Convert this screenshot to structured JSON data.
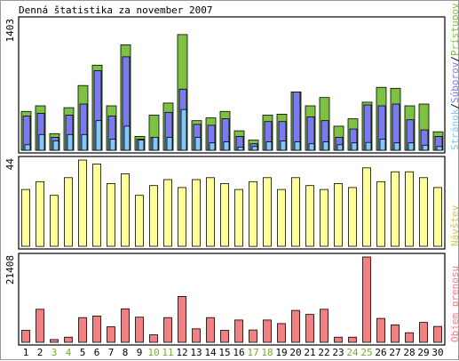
{
  "chart_data": {
    "type": "bar",
    "title": "Denná štatistika za november 2007",
    "categories": [
      "1",
      "2",
      "3",
      "4",
      "5",
      "6",
      "7",
      "8",
      "9",
      "10",
      "11",
      "12",
      "13",
      "14",
      "15",
      "16",
      "17",
      "18",
      "19",
      "20",
      "21",
      "22",
      "23",
      "24",
      "25",
      "26",
      "27",
      "28",
      "29",
      "30"
    ],
    "weekend_days": [
      "3",
      "4",
      "10",
      "11",
      "17",
      "18",
      "24",
      "25"
    ],
    "colors": {
      "pristupov": "#7dc142",
      "suborov": "#7b7bee",
      "stranok": "#7fc8f8",
      "navstev": "#ffff99",
      "objem": "#f28080",
      "weekend_label": "#78a832",
      "weekday_label": "#000000"
    },
    "panels": [
      {
        "id": "access",
        "ymax_label": "1403",
        "ylim": [
          0,
          1403
        ],
        "legend": [
          {
            "text": "Prístupov",
            "color": "#7dc142"
          },
          {
            "text": "/",
            "color": "#000000"
          },
          {
            "text": "Súborov",
            "color": "#7b7bee"
          },
          {
            "text": "/",
            "color": "#000000"
          },
          {
            "text": "Stránok",
            "color": "#7fc8f8"
          }
        ],
        "series": [
          {
            "name": "Prístupov",
            "color": "#7dc142",
            "values": [
              420,
              480,
              180,
              460,
              700,
              920,
              480,
              1140,
              150,
              380,
              510,
              1250,
              320,
              350,
              420,
              210,
              110,
              380,
              390,
              630,
              480,
              570,
              260,
              340,
              520,
              680,
              670,
              480,
              500,
              200
            ]
          },
          {
            "name": "Súborov",
            "color": "#7b7bee",
            "values": [
              370,
              400,
              140,
              380,
              500,
              860,
              370,
              1010,
              120,
              140,
              410,
              660,
              280,
              270,
              340,
              150,
              70,
              310,
              310,
              630,
              360,
              320,
              140,
              230,
              490,
              480,
              500,
              330,
              220,
              150
            ]
          },
          {
            "name": "Stránok",
            "color": "#7fc8f8",
            "values": [
              60,
              170,
              100,
              170,
              170,
              320,
              120,
              260,
              110,
              140,
              140,
              440,
              140,
              80,
              90,
              35,
              40,
              90,
              100,
              90,
              70,
              90,
              60,
              80,
              85,
              120,
              80,
              80,
              55,
              40
            ]
          }
        ]
      },
      {
        "id": "visits",
        "ymax_label": "44",
        "ylim": [
          0,
          44
        ],
        "legend": [
          {
            "text": "Návštev",
            "color": "#ffff99"
          }
        ],
        "series": [
          {
            "name": "Návštev",
            "color": "#ffff99",
            "values": [
              29,
              33,
              26,
              35,
              44,
              42,
              32,
              37,
              26,
              31,
              34,
              30,
              34,
              35,
              32,
              29,
              33,
              35,
              29,
              35,
              31,
              29,
              32,
              30,
              40,
              33,
              38,
              38,
              35,
              30
            ]
          }
        ]
      },
      {
        "id": "transfer",
        "ymax_label": "21408",
        "ylim": [
          0,
          21408
        ],
        "legend": [
          {
            "text": "Objem prenosu",
            "color": "#f28080"
          }
        ],
        "series": [
          {
            "name": "Objem prenosu",
            "color": "#f28080",
            "values": [
              3000,
              8300,
              700,
              1300,
              6200,
              6600,
              3900,
              8400,
              6300,
              1900,
              6200,
              11500,
              3400,
              6200,
              3000,
              5600,
              3100,
              5600,
              4700,
              8000,
              7000,
              8300,
              1300,
              1300,
              21400,
              6000,
              4400,
              2400,
              5000,
              4000
            ]
          }
        ]
      }
    ]
  }
}
